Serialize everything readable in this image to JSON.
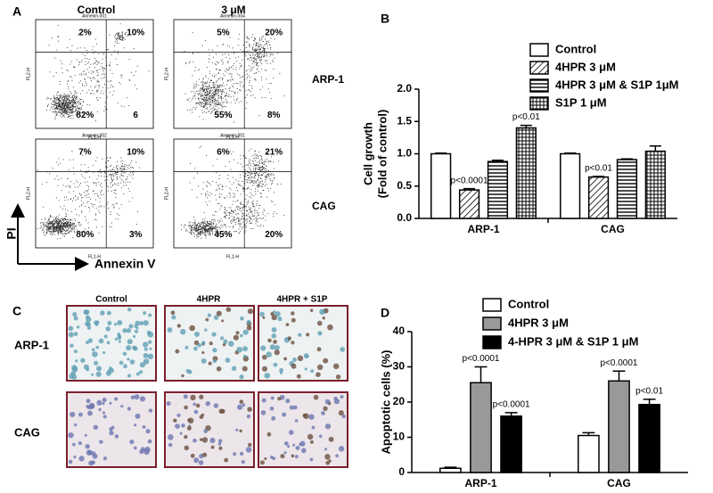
{
  "panel_a": {
    "panel_label": "A",
    "column_titles": [
      "Control",
      "3 μM"
    ],
    "row_labels": [
      "ARP-1",
      "CAG"
    ],
    "y_axis_label": "PI",
    "x_axis_label": "Annexin V",
    "plots": [
      {
        "header": "Annexin.001",
        "xlabel": "FL1-H",
        "ylabel": "FL2-H",
        "quadrants": [
          "2%",
          "10%",
          "82%",
          "6"
        ]
      },
      {
        "header": "Annexin.004",
        "xlabel": "FL1-H",
        "ylabel": "FL2-H",
        "quadrants": [
          "5%",
          "20%",
          "55%",
          "8%"
        ]
      },
      {
        "header": "Annexin.002",
        "xlabel": "FL1-H",
        "ylabel": "FL2-H",
        "quadrants": [
          "7%",
          "10%",
          "80%",
          "3%"
        ]
      },
      {
        "header": "Annexin.001",
        "xlabel": "FL1-H",
        "ylabel": "FL2-H",
        "quadrants": [
          "6%",
          "21%",
          "45%",
          "20%"
        ]
      }
    ]
  },
  "panel_c": {
    "panel_label": "C",
    "column_titles": [
      "Control",
      "4HPR",
      "4HPR + S1P"
    ],
    "row_labels": [
      "ARP-1",
      "CAG"
    ]
  },
  "chart_data": [
    {
      "type": "bar",
      "panel_label": "B",
      "y_label": [
        "Cell growth",
        "(Fold of control)"
      ],
      "categories": [
        "ARP-1",
        "CAG"
      ],
      "ylim": [
        0,
        2.0
      ],
      "yticks": [
        {
          "value": 0,
          "label": "0.0"
        },
        0.5,
        {
          "value": 1,
          "label": "1.0"
        },
        1.5,
        {
          "value": 2,
          "label": "2.0"
        }
      ],
      "series": [
        {
          "name": "Control",
          "color": "#ffffff",
          "pattern": "none",
          "values": [
            1.0,
            1.0
          ],
          "errors": [
            0.01,
            0.01
          ],
          "annotations": [
            null,
            null
          ]
        },
        {
          "name": "4HPR 3 μM",
          "color": "#ffffff",
          "pattern": "diagonal",
          "values": [
            0.44,
            0.64
          ],
          "errors": [
            0.02,
            0.01
          ],
          "annotations": [
            "p<0.0001",
            "p<0.01"
          ]
        },
        {
          "name": "4HPR 3 μM & S1P 1μM",
          "color": "#ffffff",
          "pattern": "horizontal",
          "values": [
            0.88,
            0.91
          ],
          "errors": [
            0.02,
            0.01
          ],
          "annotations": [
            null,
            null
          ]
        },
        {
          "name": "S1P 1 μM",
          "color": "#ffffff",
          "pattern": "grid",
          "values": [
            1.4,
            1.04
          ],
          "errors": [
            0.04,
            0.08
          ],
          "annotations": [
            "p<0.01",
            null
          ]
        }
      ]
    },
    {
      "type": "bar",
      "panel_label": "D",
      "y_label": [
        "Apoptotic cells (%)"
      ],
      "categories": [
        "ARP-1",
        "CAG"
      ],
      "ylim": [
        0,
        40
      ],
      "yticks": [
        0,
        10,
        20,
        30,
        40
      ],
      "series": [
        {
          "name": "Control",
          "color": "#ffffff",
          "pattern": "none",
          "values": [
            1.2,
            10.5
          ],
          "errors": [
            0.3,
            0.8
          ],
          "annotations": [
            null,
            null
          ]
        },
        {
          "name": "4HPR 3 μM",
          "color": "#999999",
          "pattern": "none",
          "values": [
            25.5,
            26
          ],
          "errors": [
            4.5,
            2.8
          ],
          "annotations": [
            "p<0.0001",
            "p<0.0001"
          ]
        },
        {
          "name": "4-HPR 3 μM & S1P 1 μM",
          "color": "#000000",
          "pattern": "none",
          "values": [
            16,
            19.3
          ],
          "errors": [
            1,
            1.5
          ],
          "annotations": [
            "p<0.0001",
            "p<0.01"
          ]
        }
      ]
    }
  ]
}
